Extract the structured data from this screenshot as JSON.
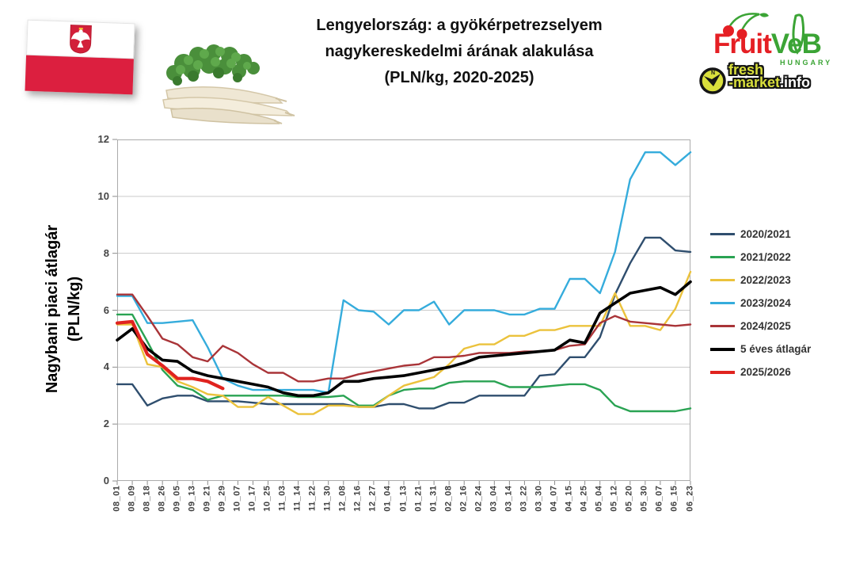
{
  "header": {
    "title": "Lengyelország: a gyökérpetrezselyem\nnagykereskedelmi árának alakulása\n(PLN/kg, 2020-2025)"
  },
  "flag": {
    "icon": "poland-flag-with-eagle",
    "colors": {
      "white": "#ffffff",
      "red": "#DC1F3F"
    }
  },
  "images": {
    "parsley": "parsley-root-bunch"
  },
  "logos": {
    "fruitveb": {
      "text_fruit": "Fruit",
      "text_veb": "VeB",
      "subtext": "HUNGARY",
      "color_red": "#E51F24",
      "color_green": "#3BA435"
    },
    "freshmarket": {
      "line1": "fresh",
      "line2_market": "-market",
      "line2_info": ".info",
      "color_yellow": "#D9DF3C",
      "color_black": "#151515"
    }
  },
  "chart_data": {
    "type": "line",
    "title": "Lengyelország: a gyökérpetrezselyem nagykereskedelmi árának alakulása (PLN/kg, 2020-2025)",
    "ylabel": "Nagybani piaci átlagár\n(PLN/kg)",
    "xlabel": "",
    "ylim": [
      0,
      12
    ],
    "yticks": [
      0,
      2,
      4,
      6,
      8,
      10,
      12
    ],
    "grid": true,
    "legend_position": "right",
    "categories": [
      "08_01",
      "08_09",
      "08_18",
      "08_26",
      "09_05",
      "09_13",
      "09_21",
      "09_29",
      "10_07",
      "10_17",
      "10_25",
      "11_03",
      "11_14",
      "11_22",
      "11_30",
      "12_08",
      "12_16",
      "12_27",
      "01_04",
      "01_13",
      "01_21",
      "01_31",
      "02_08",
      "02_16",
      "02_24",
      "03_04",
      "03_14",
      "03_22",
      "03_30",
      "04_07",
      "04_15",
      "04_25",
      "05_04",
      "05_12",
      "05_20",
      "05_30",
      "06_07",
      "06_15",
      "06_23"
    ],
    "series": [
      {
        "name": "2020/2021",
        "color": "#2F4E6E",
        "width": 2.4,
        "values": [
          3.4,
          3.4,
          2.65,
          2.9,
          3.0,
          3.0,
          2.8,
          2.8,
          2.8,
          2.75,
          2.7,
          2.7,
          2.7,
          2.7,
          2.7,
          2.7,
          2.6,
          2.6,
          2.7,
          2.7,
          2.55,
          2.55,
          2.75,
          2.75,
          3.0,
          3.0,
          3.0,
          3.0,
          3.7,
          3.75,
          4.35,
          4.35,
          5.05,
          6.55,
          7.65,
          8.55,
          8.55,
          8.1,
          8.05
        ]
      },
      {
        "name": "2021/2022",
        "color": "#2AA353",
        "width": 2.4,
        "values": [
          5.85,
          5.85,
          4.9,
          3.9,
          3.35,
          3.2,
          2.85,
          3.0,
          3.0,
          3.0,
          3.0,
          3.0,
          2.95,
          2.95,
          2.95,
          3.0,
          2.65,
          2.65,
          3.0,
          3.2,
          3.25,
          3.25,
          3.45,
          3.5,
          3.5,
          3.5,
          3.3,
          3.3,
          3.3,
          3.35,
          3.4,
          3.4,
          3.2,
          2.65,
          2.45,
          2.45,
          2.45,
          2.45,
          2.55
        ]
      },
      {
        "name": "2022/2023",
        "color": "#EBC23C",
        "width": 2.4,
        "values": [
          5.5,
          5.5,
          4.1,
          4.0,
          3.5,
          3.3,
          3.05,
          3.0,
          2.6,
          2.6,
          2.95,
          2.65,
          2.35,
          2.35,
          2.65,
          2.65,
          2.6,
          2.6,
          3.0,
          3.35,
          3.5,
          3.65,
          4.1,
          4.65,
          4.8,
          4.8,
          5.1,
          5.1,
          5.3,
          5.3,
          5.45,
          5.45,
          5.45,
          6.6,
          5.45,
          5.45,
          5.3,
          6.05,
          7.35
        ]
      },
      {
        "name": "2023/2024",
        "color": "#35ACDC",
        "width": 2.4,
        "values": [
          6.5,
          6.5,
          5.55,
          5.55,
          5.6,
          5.65,
          4.7,
          3.6,
          3.35,
          3.2,
          3.2,
          3.2,
          3.2,
          3.2,
          3.1,
          6.35,
          6.0,
          5.95,
          5.5,
          6.0,
          6.0,
          6.3,
          5.5,
          6.0,
          6.0,
          6.0,
          5.85,
          5.85,
          6.05,
          6.05,
          7.1,
          7.1,
          6.6,
          8.05,
          10.6,
          11.55,
          11.55,
          11.1,
          11.55
        ]
      },
      {
        "name": "2024/2025",
        "color": "#A93438",
        "width": 2.4,
        "values": [
          6.55,
          6.55,
          5.8,
          5.0,
          4.8,
          4.35,
          4.2,
          4.75,
          4.5,
          4.1,
          3.8,
          3.8,
          3.5,
          3.5,
          3.6,
          3.6,
          3.75,
          3.85,
          3.95,
          4.05,
          4.1,
          4.35,
          4.35,
          4.4,
          4.5,
          4.5,
          4.5,
          4.55,
          4.55,
          4.6,
          4.75,
          4.8,
          5.55,
          5.8,
          5.6,
          5.55,
          5.5,
          5.45,
          5.5
        ]
      },
      {
        "name": "5 éves átlagár",
        "color": "#000000",
        "width": 3.6,
        "values": [
          4.95,
          5.35,
          4.65,
          4.25,
          4.2,
          3.85,
          3.7,
          3.6,
          3.5,
          3.4,
          3.3,
          3.1,
          3.0,
          3.0,
          3.1,
          3.5,
          3.5,
          3.6,
          3.65,
          3.7,
          3.8,
          3.9,
          4.0,
          4.15,
          4.35,
          4.4,
          4.45,
          4.5,
          4.55,
          4.6,
          4.95,
          4.85,
          5.9,
          6.25,
          6.6,
          6.7,
          6.8,
          6.55,
          7.0
        ]
      },
      {
        "name": "2025/2026",
        "color": "#E0231F",
        "width": 4.2,
        "values": [
          5.55,
          5.6,
          4.45,
          4.05,
          3.6,
          3.6,
          3.5,
          3.25,
          null,
          null,
          null,
          null,
          null,
          null,
          null,
          null,
          null,
          null,
          null,
          null,
          null,
          null,
          null,
          null,
          null,
          null,
          null,
          null,
          null,
          null,
          null,
          null,
          null,
          null,
          null,
          null,
          null,
          null,
          null
        ]
      }
    ]
  }
}
